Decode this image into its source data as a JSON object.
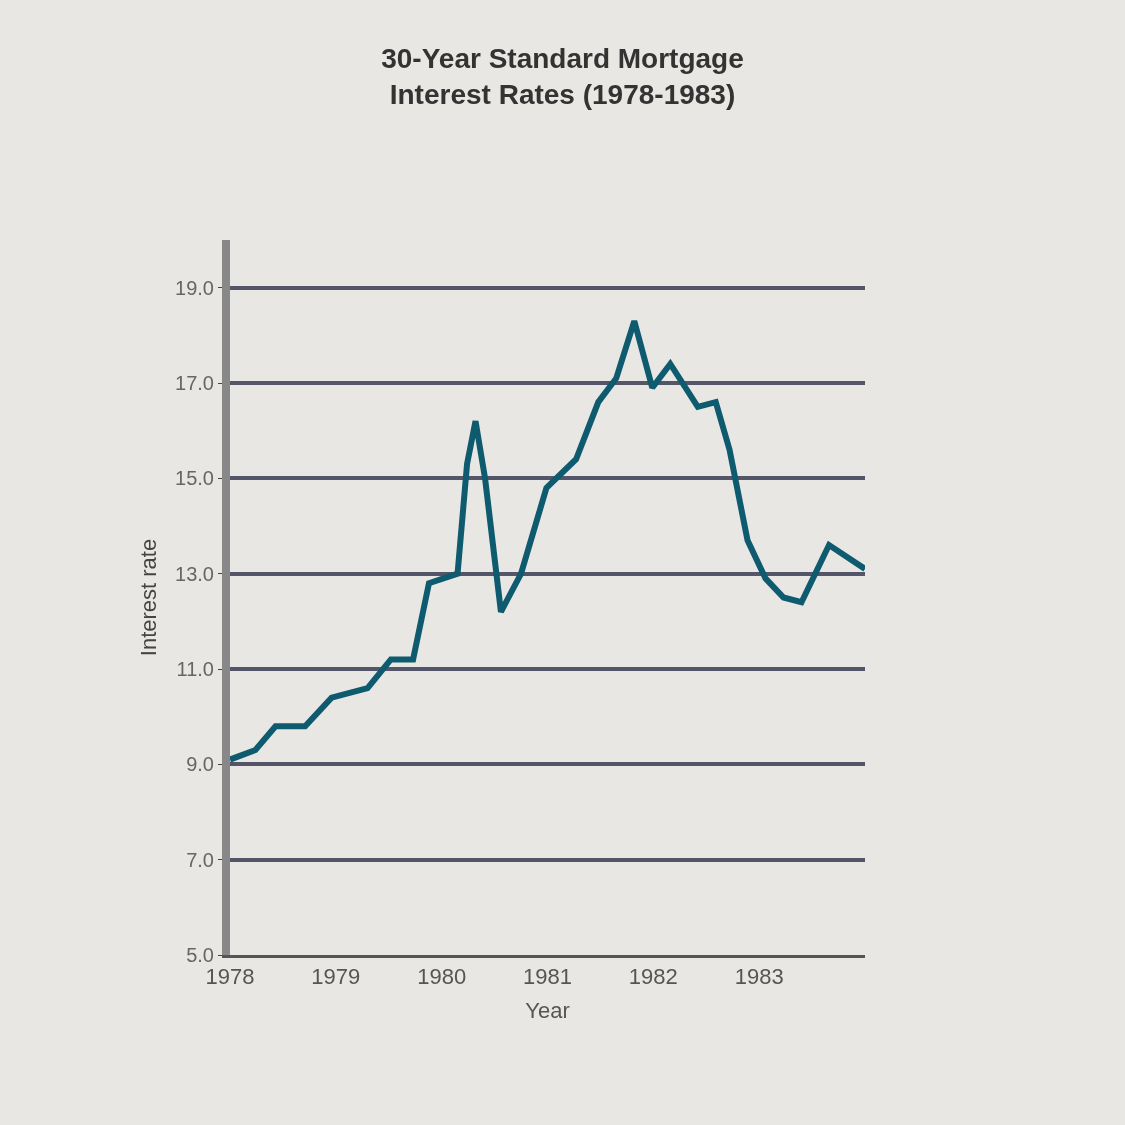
{
  "chart_data": {
    "type": "line",
    "title": "30-Year Standard Mortgage\nInterest Rates (1978-1983)",
    "xlabel": "Year",
    "ylabel": "Interest rate",
    "x": [
      1978.0,
      1978.24,
      1978.43,
      1978.71,
      1978.96,
      1979.3,
      1979.52,
      1979.73,
      1979.88,
      1980.15,
      1980.24,
      1980.32,
      1980.41,
      1980.56,
      1980.75,
      1980.99,
      1981.27,
      1981.48,
      1981.65,
      1981.82,
      1981.99,
      1982.16,
      1982.42,
      1982.59,
      1982.72,
      1982.89,
      1983.06,
      1983.23,
      1983.4,
      1983.66,
      1984.0
    ],
    "series": [
      {
        "color": "#0e5a6e",
        "values": [
          9.1,
          9.3,
          9.8,
          9.8,
          10.4,
          10.6,
          11.2,
          11.2,
          12.8,
          13.0,
          15.3,
          16.2,
          15.0,
          12.2,
          13.0,
          14.8,
          15.4,
          16.6,
          17.1,
          18.3,
          16.9,
          17.4,
          16.5,
          16.6,
          15.6,
          13.7,
          12.9,
          12.5,
          12.4,
          13.6,
          13.1
        ]
      }
    ],
    "xlim": [
      1978,
      1984
    ],
    "xticks": [
      1978,
      1979,
      1980,
      1981,
      1982,
      1983
    ],
    "ylim": [
      5,
      20
    ],
    "yticks": [
      {
        "value": 5,
        "label": "5.0"
      },
      {
        "value": 7,
        "label": "7.0"
      },
      {
        "value": 9,
        "label": "9.0"
      },
      {
        "value": 11,
        "label": "11.0"
      },
      {
        "value": 13,
        "label": "13.0"
      },
      {
        "value": 15,
        "label": "15.0"
      },
      {
        "value": 17,
        "label": "17.0"
      },
      {
        "value": 19,
        "label": "19.0"
      }
    ],
    "grid": "y",
    "marker": "none",
    "line_style": "solid"
  }
}
